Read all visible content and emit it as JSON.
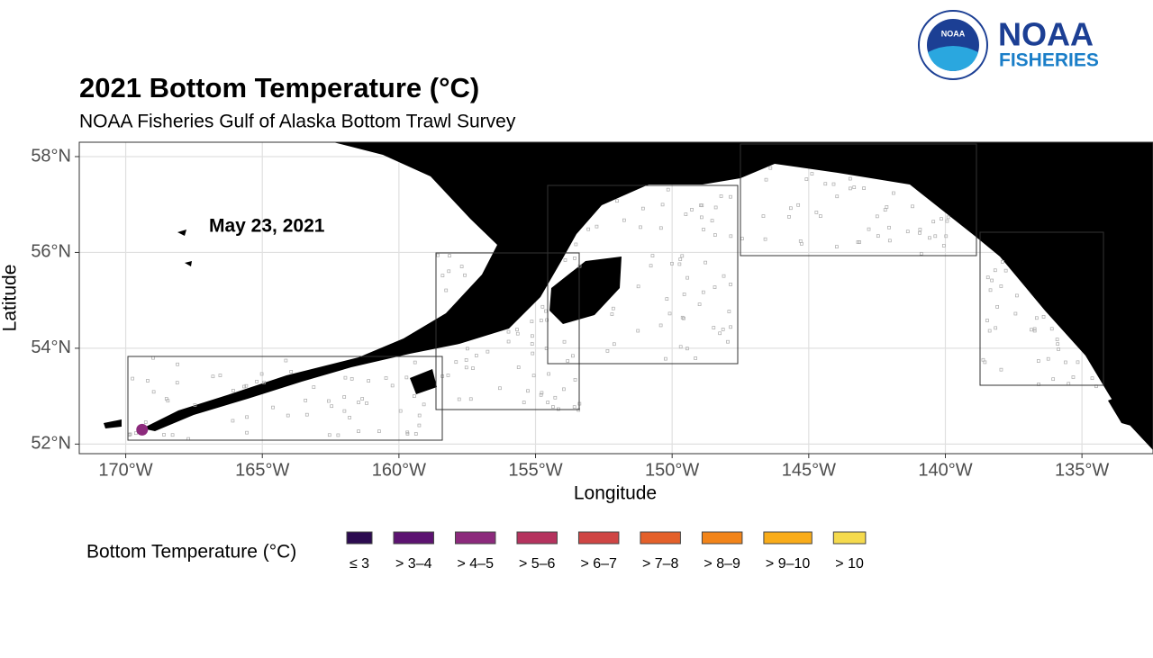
{
  "logo": {
    "seal": "NOAA",
    "agency": "NOAA",
    "division": "FISHERIES"
  },
  "map": {
    "title": "2021 Bottom Temperature (°C)",
    "subtitle": "NOAA Fisheries Gulf of Alaska Bottom Trawl Survey",
    "annotation": "May 23, 2021",
    "x_label": "Longitude",
    "y_label": "Latitude",
    "xlim": [
      -171.7,
      -132.4
    ],
    "ylim": [
      51.8,
      58.3
    ],
    "xticks": [
      {
        "value": -170,
        "label": "170°W"
      },
      {
        "value": -165,
        "label": "165°W"
      },
      {
        "value": -160,
        "label": "160°W"
      },
      {
        "value": -155,
        "label": "155°W"
      },
      {
        "value": -150,
        "label": "150°W"
      },
      {
        "value": -145,
        "label": "145°W"
      },
      {
        "value": -140,
        "label": "140°W"
      },
      {
        "value": -135,
        "label": "135°W"
      }
    ],
    "yticks": [
      {
        "value": 52,
        "label": "52°N"
      },
      {
        "value": 54,
        "label": "54°N"
      },
      {
        "value": 56,
        "label": "56°N"
      },
      {
        "value": 58,
        "label": "58°N"
      }
    ],
    "points": [
      {
        "lon": -169.4,
        "lat": 52.3,
        "color": "#8c2a7c"
      }
    ],
    "legend": {
      "title": "Bottom Temperature (°C)",
      "items": [
        {
          "label": "≤ 3",
          "color": "#2c0b50"
        },
        {
          "label": "> 3–4",
          "color": "#5c1371"
        },
        {
          "label": "> 4–5",
          "color": "#8c2a7c"
        },
        {
          "label": "> 5–6",
          "color": "#b5335e"
        },
        {
          "label": "> 6–7",
          "color": "#cf4544"
        },
        {
          "label": "> 7–8",
          "color": "#e4602a"
        },
        {
          "label": "> 8–9",
          "color": "#f28419"
        },
        {
          "label": "> 9–10",
          "color": "#f9ac19"
        },
        {
          "label": "> 10",
          "color": "#f5da4d"
        }
      ]
    }
  }
}
